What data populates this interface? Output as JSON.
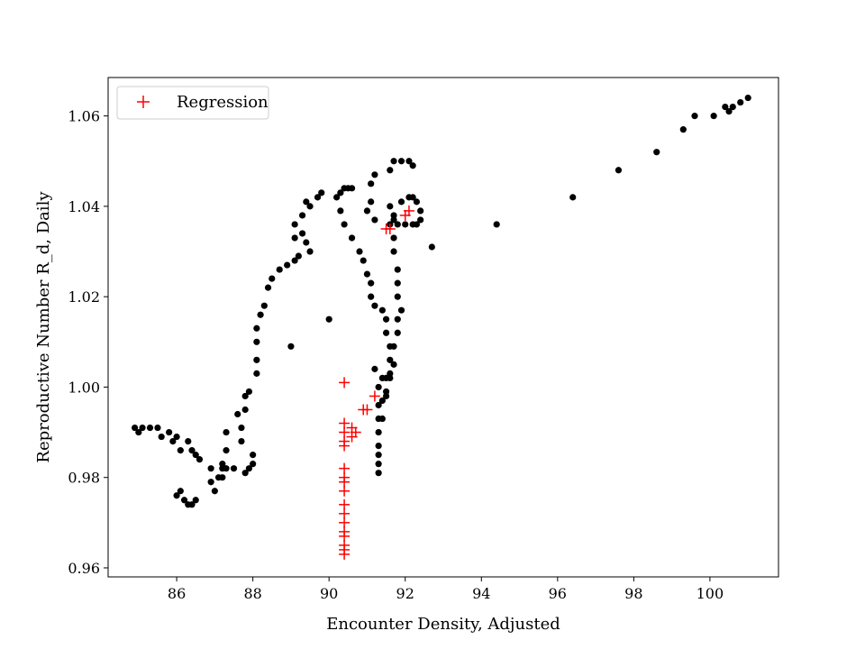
{
  "chart_data": {
    "type": "scatter",
    "title": "",
    "xlabel": "Encounter Density, Adjusted",
    "ylabel": "Reproductive Number R_d, Daily",
    "xlim": [
      84.2,
      101.8
    ],
    "ylim": [
      0.958,
      1.0685
    ],
    "xticks": [
      86,
      88,
      90,
      92,
      94,
      96,
      98,
      100
    ],
    "yticks": [
      0.96,
      0.98,
      1.0,
      1.02,
      1.04,
      1.06
    ],
    "grid": false,
    "legend_position": "top-left",
    "colors": {
      "data": "#000000",
      "regression": "#ff0000",
      "axes": "#000000"
    },
    "legend": [
      {
        "label": "Regression",
        "marker": "plus",
        "color": "#ff0000"
      }
    ],
    "series": [
      {
        "marker": "circle",
        "color": "#000000",
        "points": [
          [
            84.9,
            0.991
          ],
          [
            85.0,
            0.99
          ],
          [
            85.1,
            0.991
          ],
          [
            85.3,
            0.991
          ],
          [
            85.5,
            0.991
          ],
          [
            85.6,
            0.989
          ],
          [
            85.8,
            0.99
          ],
          [
            85.9,
            0.988
          ],
          [
            86.0,
            0.989
          ],
          [
            86.1,
            0.986
          ],
          [
            86.3,
            0.988
          ],
          [
            86.4,
            0.986
          ],
          [
            86.5,
            0.985
          ],
          [
            86.6,
            0.984
          ],
          [
            86.0,
            0.976
          ],
          [
            86.1,
            0.977
          ],
          [
            86.2,
            0.975
          ],
          [
            86.3,
            0.974
          ],
          [
            86.4,
            0.974
          ],
          [
            86.5,
            0.975
          ],
          [
            86.9,
            0.982
          ],
          [
            86.9,
            0.979
          ],
          [
            87.0,
            0.977
          ],
          [
            87.1,
            0.98
          ],
          [
            87.2,
            0.983
          ],
          [
            87.2,
            0.982
          ],
          [
            87.2,
            0.98
          ],
          [
            87.3,
            0.982
          ],
          [
            87.3,
            0.986
          ],
          [
            87.3,
            0.99
          ],
          [
            87.5,
            0.982
          ],
          [
            87.7,
            0.988
          ],
          [
            87.6,
            0.994
          ],
          [
            87.8,
            0.995
          ],
          [
            87.7,
            0.991
          ],
          [
            87.8,
            0.998
          ],
          [
            87.9,
            0.999
          ],
          [
            87.8,
            0.981
          ],
          [
            87.9,
            0.982
          ],
          [
            88.0,
            0.985
          ],
          [
            88.0,
            0.983
          ],
          [
            88.1,
            1.003
          ],
          [
            88.1,
            1.006
          ],
          [
            88.1,
            1.01
          ],
          [
            88.1,
            1.013
          ],
          [
            88.2,
            1.016
          ],
          [
            88.3,
            1.018
          ],
          [
            88.4,
            1.022
          ],
          [
            88.5,
            1.024
          ],
          [
            88.7,
            1.026
          ],
          [
            88.9,
            1.027
          ],
          [
            89.1,
            1.028
          ],
          [
            89.2,
            1.029
          ],
          [
            89.1,
            1.033
          ],
          [
            89.3,
            1.034
          ],
          [
            89.4,
            1.032
          ],
          [
            89.5,
            1.03
          ],
          [
            89.1,
            1.036
          ],
          [
            89.3,
            1.038
          ],
          [
            89.4,
            1.041
          ],
          [
            89.5,
            1.04
          ],
          [
            89.7,
            1.042
          ],
          [
            89.8,
            1.043
          ],
          [
            89.0,
            1.009
          ],
          [
            90.0,
            1.015
          ],
          [
            90.2,
            1.042
          ],
          [
            90.3,
            1.043
          ],
          [
            90.4,
            1.044
          ],
          [
            90.5,
            1.044
          ],
          [
            90.6,
            1.044
          ],
          [
            90.3,
            1.039
          ],
          [
            90.4,
            1.036
          ],
          [
            90.6,
            1.033
          ],
          [
            90.8,
            1.03
          ],
          [
            90.9,
            1.028
          ],
          [
            91.0,
            1.025
          ],
          [
            91.1,
            1.023
          ],
          [
            91.1,
            1.02
          ],
          [
            91.2,
            1.018
          ],
          [
            91.4,
            1.017
          ],
          [
            91.5,
            1.015
          ],
          [
            91.5,
            1.012
          ],
          [
            91.6,
            1.009
          ],
          [
            91.6,
            1.006
          ],
          [
            91.6,
            1.003
          ],
          [
            91.5,
            0.998
          ],
          [
            91.4,
            1.002
          ],
          [
            91.3,
            1.0
          ],
          [
            91.2,
            1.004
          ],
          [
            91.0,
            1.039
          ],
          [
            91.1,
            1.041
          ],
          [
            91.1,
            1.045
          ],
          [
            91.2,
            1.047
          ],
          [
            91.2,
            1.037
          ],
          [
            91.3,
            0.996
          ],
          [
            91.3,
            0.993
          ],
          [
            91.3,
            0.99
          ],
          [
            91.3,
            0.987
          ],
          [
            91.3,
            0.985
          ],
          [
            91.3,
            0.983
          ],
          [
            91.3,
            0.981
          ],
          [
            91.4,
            0.997
          ],
          [
            91.4,
            0.993
          ],
          [
            91.5,
            0.999
          ],
          [
            91.5,
            1.002
          ],
          [
            91.6,
            1.048
          ],
          [
            91.7,
            1.05
          ],
          [
            91.9,
            1.05
          ],
          [
            92.1,
            1.05
          ],
          [
            92.2,
            1.049
          ],
          [
            91.6,
            1.04
          ],
          [
            91.7,
            1.038
          ],
          [
            91.6,
            1.036
          ],
          [
            91.7,
            1.033
          ],
          [
            91.7,
            1.03
          ],
          [
            91.8,
            1.026
          ],
          [
            91.8,
            1.023
          ],
          [
            91.8,
            1.02
          ],
          [
            91.9,
            1.017
          ],
          [
            91.8,
            1.015
          ],
          [
            91.8,
            1.012
          ],
          [
            91.7,
            1.009
          ],
          [
            91.7,
            1.005
          ],
          [
            91.6,
            1.002
          ],
          [
            91.9,
            1.041
          ],
          [
            92.1,
            1.042
          ],
          [
            92.2,
            1.042
          ],
          [
            92.3,
            1.041
          ],
          [
            92.4,
            1.039
          ],
          [
            92.4,
            1.037
          ],
          [
            92.3,
            1.036
          ],
          [
            92.2,
            1.036
          ],
          [
            92.0,
            1.036
          ],
          [
            91.8,
            1.036
          ],
          [
            91.7,
            1.037
          ],
          [
            92.7,
            1.031
          ],
          [
            94.4,
            1.036
          ],
          [
            96.4,
            1.042
          ],
          [
            97.6,
            1.048
          ],
          [
            98.6,
            1.052
          ],
          [
            99.3,
            1.057
          ],
          [
            99.6,
            1.06
          ],
          [
            100.1,
            1.06
          ],
          [
            100.4,
            1.062
          ],
          [
            100.5,
            1.061
          ],
          [
            100.6,
            1.062
          ],
          [
            100.8,
            1.063
          ],
          [
            101.0,
            1.064
          ]
        ]
      },
      {
        "name": "Regression",
        "marker": "plus",
        "color": "#ff0000",
        "points": [
          [
            90.4,
            1.001
          ],
          [
            90.4,
            0.992
          ],
          [
            90.4,
            0.99
          ],
          [
            90.4,
            0.988
          ],
          [
            90.4,
            0.987
          ],
          [
            90.6,
            0.991
          ],
          [
            90.6,
            0.989
          ],
          [
            90.7,
            0.99
          ],
          [
            90.9,
            0.995
          ],
          [
            91.0,
            0.995
          ],
          [
            91.2,
            0.998
          ],
          [
            90.4,
            0.982
          ],
          [
            90.4,
            0.98
          ],
          [
            90.4,
            0.979
          ],
          [
            90.4,
            0.977
          ],
          [
            90.4,
            0.974
          ],
          [
            90.4,
            0.972
          ],
          [
            90.4,
            0.97
          ],
          [
            90.4,
            0.968
          ],
          [
            90.4,
            0.967
          ],
          [
            90.4,
            0.965
          ],
          [
            90.4,
            0.964
          ],
          [
            90.4,
            0.963
          ],
          [
            91.5,
            1.035
          ],
          [
            91.6,
            1.035
          ],
          [
            92.0,
            1.038
          ],
          [
            92.1,
            1.039
          ]
        ]
      }
    ]
  }
}
